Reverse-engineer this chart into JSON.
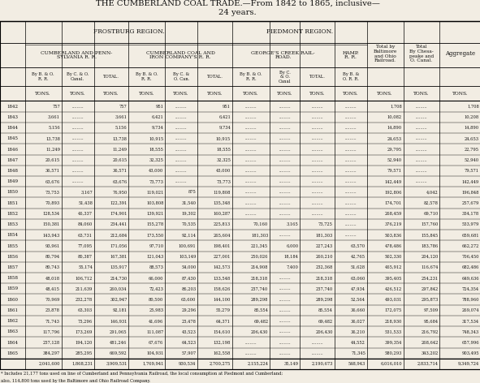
{
  "title_line1": "THE CUMBERLAND COAL TRADE.—From 1842 to 1865, inclusive—",
  "title_line2": "24 years.",
  "bg_color": "#f2ede3",
  "text_color": "#111111",
  "years": [
    1842,
    1843,
    1844,
    1845,
    1846,
    1847,
    1848,
    1849,
    1850,
    1851,
    1852,
    1853,
    1854,
    1855,
    1856,
    1857,
    1858,
    1859,
    1860,
    1861,
    1862,
    1863,
    1864,
    1865
  ],
  "rows": [
    [
      757,
      "",
      757,
      951,
      "",
      951,
      "",
      "",
      "",
      "",
      1708,
      "",
      1708
    ],
    [
      3661,
      "",
      3661,
      6421,
      "",
      6421,
      "",
      "",
      "",
      "",
      10082,
      "",
      10208
    ],
    [
      5156,
      "",
      5156,
      9734,
      "",
      9734,
      "",
      "",
      "",
      "",
      14890,
      "",
      14890
    ],
    [
      13738,
      "",
      13738,
      10915,
      "",
      10915,
      "",
      "",
      "",
      "",
      24653,
      "",
      24653
    ],
    [
      11249,
      "",
      11249,
      18555,
      "",
      18555,
      "",
      "",
      "",
      "",
      29795,
      "",
      22795
    ],
    [
      20615,
      "",
      20615,
      32325,
      "",
      32325,
      "",
      "",
      "",
      "",
      52940,
      "",
      52940
    ],
    [
      36571,
      "",
      36571,
      43000,
      "",
      43000,
      "",
      "",
      "",
      "",
      79571,
      "",
      79571
    ],
    [
      63676,
      "",
      63676,
      73773,
      "",
      73773,
      "",
      "",
      "",
      "",
      142449,
      "",
      142449
    ],
    [
      73753,
      3167,
      76950,
      119021,
      875,
      119808,
      "",
      "",
      "",
      "",
      192806,
      4042,
      196848
    ],
    [
      70893,
      51438,
      122391,
      103808,
      31540,
      135348,
      "",
      "",
      "",
      "",
      174701,
      82578,
      257679
    ],
    [
      128534,
      46337,
      174901,
      139921,
      19302,
      160287,
      "",
      "",
      "",
      "",
      268459,
      69710,
      334178
    ],
    [
      150381,
      84060,
      234441,
      155278,
      70535,
      225813,
      70160,
      3165,
      73725,
      "",
      376219,
      157760,
      533979
    ],
    [
      143943,
      63731,
      212684,
      173550,
      92114,
      265604,
      181303,
      "",
      181303,
      "",
      503836,
      155845,
      659681
    ],
    [
      93961,
      77095,
      171056,
      97710,
      100691,
      198401,
      221345,
      6000,
      227243,
      63570,
      478486,
      183786,
      662272
    ],
    [
      80794,
      80387,
      167381,
      121043,
      103149,
      227001,
      250026,
      18184,
      260210,
      42765,
      502330,
      204120,
      706450
    ],
    [
      80743,
      55174,
      135917,
      88573,
      54000,
      142573,
      214908,
      7400,
      232368,
      51628,
      465912,
      116674,
      682486
    ],
    [
      48018,
      106712,
      214730,
      66000,
      87430,
      133548,
      218318,
      "",
      218318,
      63060,
      395405,
      254231,
      649636
    ],
    [
      48415,
      211639,
      260034,
      72423,
      86203,
      158626,
      237740,
      "",
      237740,
      47934,
      426512,
      297842,
      724354
    ],
    [
      70969,
      232278,
      302947,
      80500,
      63600,
      144100,
      289298,
      "",
      289298,
      52564,
      493031,
      295873,
      788960
    ],
    [
      23878,
      63303,
      92181,
      25983,
      29296,
      55279,
      85554,
      "",
      85554,
      36660,
      172075,
      97509,
      269074
    ],
    [
      71743,
      73296,
      146931,
      41696,
      23478,
      64371,
      69482,
      "",
      69482,
      36027,
      218930,
      95684,
      317534
    ],
    [
      117796,
      173269,
      291065,
      111087,
      43523,
      154610,
      206430,
      "",
      206430,
      36210,
      531533,
      216792,
      748343
    ],
    [
      237128,
      194120,
      481246,
      67676,
      64523,
      132198,
      "",
      "",
      "",
      44552,
      399354,
      268642,
      657996
    ],
    [
      384297,
      285295,
      669592,
      104931,
      57907,
      162558,
      "",
      "",
      "",
      71345,
      580293,
      343202,
      903495
    ]
  ],
  "totals": [
    2041600,
    1868231,
    3909531,
    1769941,
    930534,
    2700275,
    2155224,
    35149,
    2190673,
    548943,
    6016010,
    2833714,
    9349724
  ],
  "footnote": "* Includes 21,177 tons used on line of Cumberland and Pennsylvania Railroad, the local consumption at Piedmont and Cumberland;\nalso, 114,800 tons used by the Baltimore and Ohio Railroad Company."
}
